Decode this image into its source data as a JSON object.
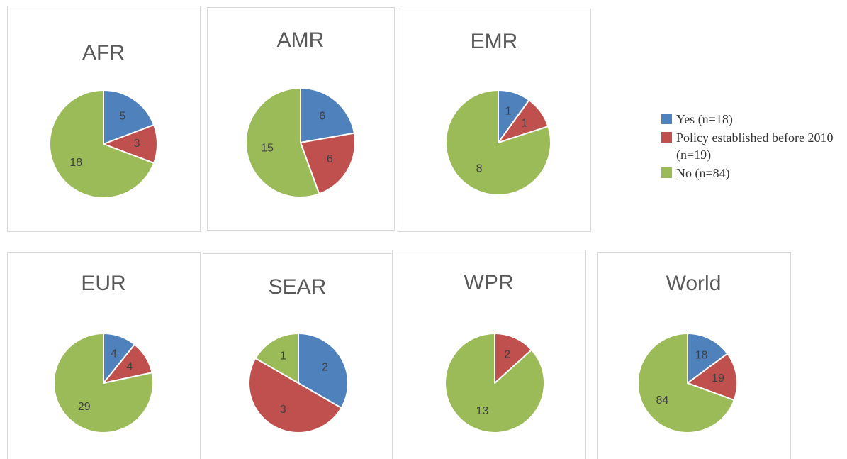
{
  "legend": {
    "categories": [
      "Yes (n=18)",
      "Policy established before 2010 (n=19)",
      "No (n=84)"
    ],
    "colors": [
      "#4f81bd",
      "#c0504d",
      "#9bbb59"
    ]
  },
  "chart_data": [
    {
      "type": "pie",
      "title": "AFR",
      "values": [
        5,
        3,
        18
      ]
    },
    {
      "type": "pie",
      "title": "AMR",
      "values": [
        6,
        6,
        15
      ]
    },
    {
      "type": "pie",
      "title": "EMR",
      "values": [
        1,
        1,
        8
      ]
    },
    {
      "type": "pie",
      "title": "EUR",
      "values": [
        4,
        4,
        29
      ]
    },
    {
      "type": "pie",
      "title": "SEAR",
      "values": [
        2,
        3,
        1
      ]
    },
    {
      "type": "pie",
      "title": "WPR",
      "values": [
        0,
        2,
        13
      ]
    },
    {
      "type": "pie",
      "title": "World",
      "values": [
        18,
        19,
        84
      ]
    }
  ]
}
